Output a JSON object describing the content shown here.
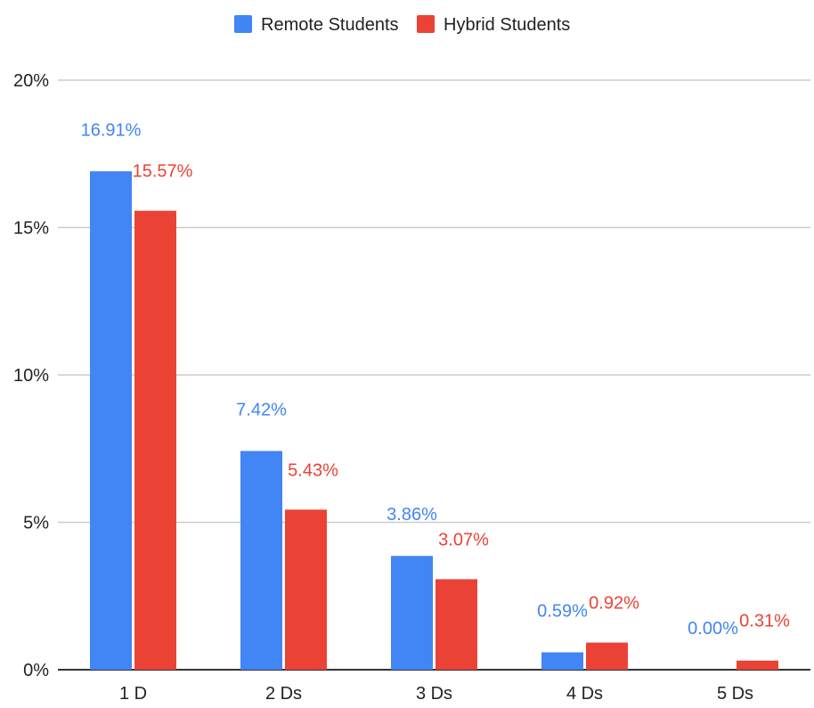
{
  "chart_data": {
    "type": "bar",
    "categories": [
      "1 D",
      "2 Ds",
      "3 Ds",
      "4 Ds",
      "5 Ds"
    ],
    "series": [
      {
        "name": "Remote Students",
        "color": "#4285F4",
        "values": [
          16.91,
          7.42,
          3.86,
          0.59,
          0.0
        ],
        "labels": [
          "16.91%",
          "7.42%",
          "3.86%",
          "0.59%",
          "0.00%"
        ]
      },
      {
        "name": "Hybrid Students",
        "color": "#EA4335",
        "values": [
          15.57,
          5.43,
          3.07,
          0.92,
          0.31
        ],
        "labels": [
          "15.57%",
          "5.43%",
          "3.07%",
          "0.92%",
          "0.31%"
        ]
      }
    ],
    "yticks": [
      0,
      5,
      10,
      15,
      20
    ],
    "ytick_labels": [
      "0%",
      "5%",
      "10%",
      "15%",
      "20%"
    ],
    "ylim": [
      0,
      20
    ],
    "grid": true,
    "legend": "top-center",
    "title": "",
    "xlabel": "",
    "ylabel": ""
  }
}
